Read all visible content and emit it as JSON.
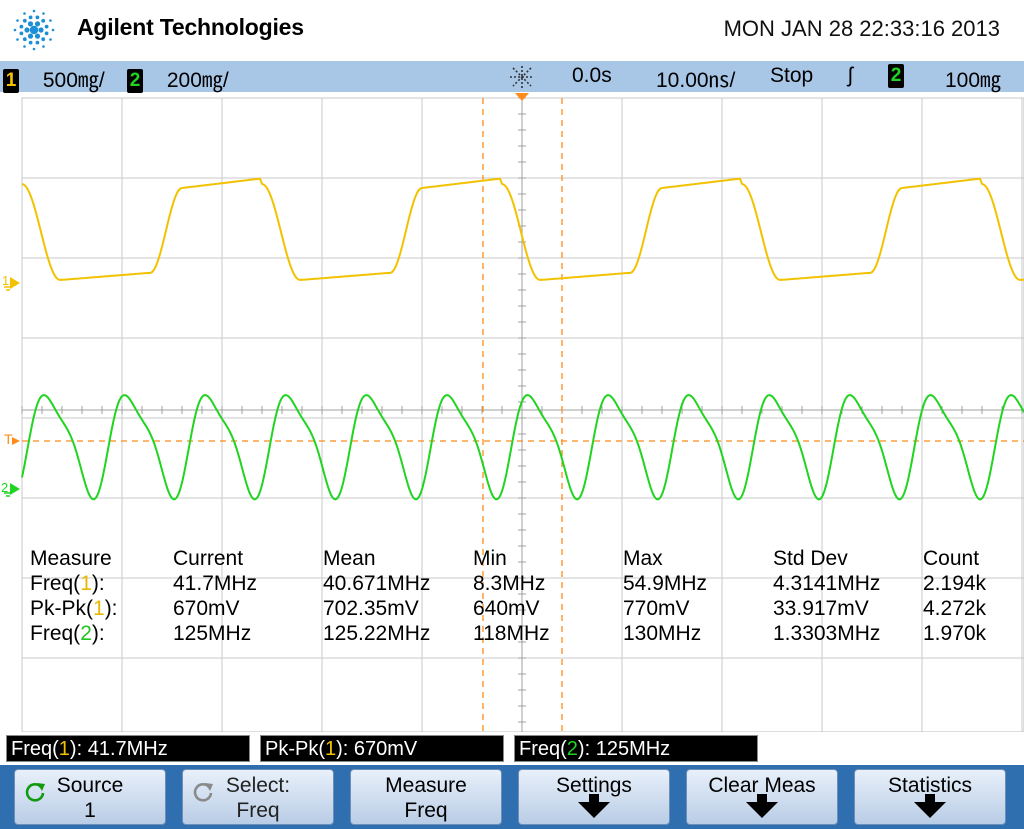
{
  "header": {
    "brand": "Agilent Technologies",
    "datetime": "MON JAN 28 22:33:16 2013"
  },
  "status": {
    "ch1_num": "1",
    "ch1_scale": "500㎎/",
    "ch2_num": "2",
    "ch2_scale": "200㎎/",
    "delay": "0.0s",
    "timebase": "10.00㎱/",
    "run_state": "Stop",
    "trig_slope": "ʃ",
    "trig_source": "2",
    "trig_level": "100㎎"
  },
  "markers": {
    "ch1_label": "1",
    "trig_label": "T",
    "ch2_label": "2"
  },
  "measure": {
    "headers": [
      "Measure",
      "Current",
      "Mean",
      "Min",
      "Max",
      "Std Dev",
      "Count"
    ],
    "rows": [
      {
        "name_pre": "Freq(",
        "name_ch": "1",
        "name_post": "):",
        "ch": 1,
        "values": [
          "41.7MHz",
          "40.671MHz",
          "8.3MHz",
          "54.9MHz",
          "4.3141MHz",
          "2.194k"
        ]
      },
      {
        "name_pre": "Pk-Pk(",
        "name_ch": "1",
        "name_post": "):",
        "ch": 1,
        "values": [
          "670mV",
          "702.35mV",
          "640mV",
          "770mV",
          "33.917mV",
          "4.272k"
        ]
      },
      {
        "name_pre": "Freq(",
        "name_ch": "2",
        "name_post": "):",
        "ch": 2,
        "values": [
          "125MHz",
          "125.22MHz",
          "118MHz",
          "130MHz",
          "1.3303MHz",
          "1.970k"
        ]
      }
    ]
  },
  "readouts": [
    {
      "pre": "Freq(",
      "ch": "1",
      "post": "): 41.7MHz",
      "chnum": 1
    },
    {
      "pre": "Pk-Pk(",
      "ch": "1",
      "post": "): 670mV",
      "chnum": 1
    },
    {
      "pre": "Freq(",
      "ch": "2",
      "post": "): 125MHz",
      "chnum": 2
    }
  ],
  "softkeys": [
    {
      "line1": "Source",
      "line2": "1",
      "icon": "cycle-icon"
    },
    {
      "line1": "Select:",
      "line2": "Freq",
      "icon": "cycle-icon"
    },
    {
      "line1": "Measure",
      "line2": "Freq"
    },
    {
      "line1": "Settings",
      "icon": "down-arrow-icon"
    },
    {
      "line1": "Clear Meas",
      "icon": "down-arrow-icon"
    },
    {
      "line1": "Statistics",
      "icon": "down-arrow-icon"
    }
  ],
  "colors": {
    "ch1": "#f2c200",
    "ch2": "#21d421",
    "cursor": "#ff8c1a",
    "status_bar": "#a8c6e6",
    "softkey_bar": "#2f6fb0"
  }
}
